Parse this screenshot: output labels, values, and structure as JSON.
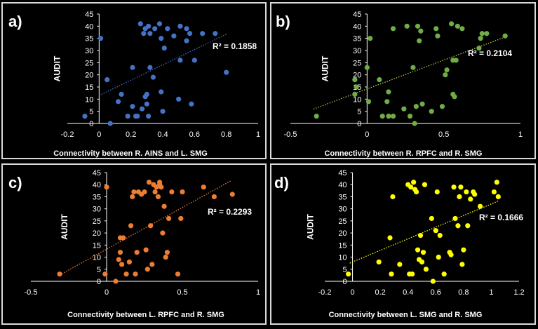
{
  "panel_border_color": "#d9d9d9",
  "background_color": "#000000",
  "axis_color": "#ffffff",
  "text_color": "#ffffff",
  "chart_data": [
    {
      "type": "scatter",
      "panel_label": "a)",
      "xlabel": "Connectivity between R. AINS and L. SMG",
      "ylabel": "AUDIT",
      "xlim": [
        -0.2,
        1
      ],
      "ylim": [
        0,
        45
      ],
      "xticks": [
        -0.2,
        0,
        0.2,
        0.4,
        0.6,
        0.8,
        1
      ],
      "yticks": [
        0,
        5,
        10,
        15,
        20,
        25,
        30,
        35,
        40,
        45
      ],
      "grid": false,
      "marker_color": "#4472c4",
      "trendline": {
        "style": "dotted",
        "color": "#4472c4",
        "intercept": 11.5,
        "slope": 31.5,
        "x_range": [
          0,
          0.8
        ]
      },
      "r2_label": "R² = 0.1858",
      "points": [
        {
          "x": -0.09,
          "y": 3
        },
        {
          "x": 0.01,
          "y": 35
        },
        {
          "x": 0.05,
          "y": 18
        },
        {
          "x": 0.07,
          "y": 0
        },
        {
          "x": 0.12,
          "y": 9
        },
        {
          "x": 0.14,
          "y": 12
        },
        {
          "x": 0.18,
          "y": 3
        },
        {
          "x": 0.21,
          "y": 23
        },
        {
          "x": 0.21,
          "y": 7
        },
        {
          "x": 0.23,
          "y": 3
        },
        {
          "x": 0.24,
          "y": 3
        },
        {
          "x": 0.26,
          "y": 41
        },
        {
          "x": 0.27,
          "y": 6
        },
        {
          "x": 0.28,
          "y": 37
        },
        {
          "x": 0.29,
          "y": 11
        },
        {
          "x": 0.29,
          "y": 39
        },
        {
          "x": 0.3,
          "y": 12
        },
        {
          "x": 0.3,
          "y": 8
        },
        {
          "x": 0.31,
          "y": 40
        },
        {
          "x": 0.31,
          "y": 3
        },
        {
          "x": 0.32,
          "y": 23
        },
        {
          "x": 0.32,
          "y": 37
        },
        {
          "x": 0.34,
          "y": 19
        },
        {
          "x": 0.35,
          "y": 39
        },
        {
          "x": 0.38,
          "y": 41
        },
        {
          "x": 0.39,
          "y": 35
        },
        {
          "x": 0.39,
          "y": 13
        },
        {
          "x": 0.4,
          "y": 5
        },
        {
          "x": 0.41,
          "y": 31
        },
        {
          "x": 0.43,
          "y": 39
        },
        {
          "x": 0.47,
          "y": 36
        },
        {
          "x": 0.5,
          "y": 10
        },
        {
          "x": 0.51,
          "y": 26
        },
        {
          "x": 0.51,
          "y": 40
        },
        {
          "x": 0.55,
          "y": 39
        },
        {
          "x": 0.55,
          "y": 34
        },
        {
          "x": 0.57,
          "y": 37
        },
        {
          "x": 0.58,
          "y": 8
        },
        {
          "x": 0.6,
          "y": 26
        },
        {
          "x": 0.65,
          "y": 37
        },
        {
          "x": 0.73,
          "y": 37
        },
        {
          "x": 0.8,
          "y": 21
        }
      ]
    },
    {
      "type": "scatter",
      "panel_label": "b)",
      "xlabel": "Connectivity between R. RPFC and R. SMG",
      "ylabel": "AUDIT",
      "xlim": [
        -0.5,
        1
      ],
      "ylim": [
        0,
        45
      ],
      "xticks": [
        -0.5,
        0,
        0.5,
        1
      ],
      "yticks": [
        0,
        5,
        10,
        15,
        20,
        25,
        30,
        35,
        40,
        45
      ],
      "grid": false,
      "marker_color": "#70ad47",
      "trendline": {
        "style": "dotted",
        "color": "#b4c94a",
        "intercept": 14.2,
        "slope": 23.7,
        "x_range": [
          -0.35,
          0.9
        ]
      },
      "r2_label": "R² = 0.2104",
      "points": [
        {
          "x": -0.33,
          "y": 3
        },
        {
          "x": -0.08,
          "y": 18
        },
        {
          "x": -0.08,
          "y": 12
        },
        {
          "x": -0.07,
          "y": 15
        },
        {
          "x": 0.0,
          "y": 23
        },
        {
          "x": 0.01,
          "y": 9
        },
        {
          "x": 0.02,
          "y": 35
        },
        {
          "x": 0.08,
          "y": 18
        },
        {
          "x": 0.1,
          "y": 3
        },
        {
          "x": 0.13,
          "y": 9
        },
        {
          "x": 0.14,
          "y": 13
        },
        {
          "x": 0.14,
          "y": 3
        },
        {
          "x": 0.17,
          "y": 3
        },
        {
          "x": 0.17,
          "y": 39
        },
        {
          "x": 0.24,
          "y": 6
        },
        {
          "x": 0.26,
          "y": 40
        },
        {
          "x": 0.28,
          "y": 3
        },
        {
          "x": 0.3,
          "y": 23
        },
        {
          "x": 0.31,
          "y": 0
        },
        {
          "x": 0.32,
          "y": 7
        },
        {
          "x": 0.33,
          "y": 40
        },
        {
          "x": 0.34,
          "y": 34
        },
        {
          "x": 0.35,
          "y": 38
        },
        {
          "x": 0.36,
          "y": 8
        },
        {
          "x": 0.42,
          "y": 5
        },
        {
          "x": 0.45,
          "y": 39
        },
        {
          "x": 0.46,
          "y": 36
        },
        {
          "x": 0.49,
          "y": 7
        },
        {
          "x": 0.51,
          "y": 20
        },
        {
          "x": 0.52,
          "y": 22
        },
        {
          "x": 0.55,
          "y": 41
        },
        {
          "x": 0.56,
          "y": 26
        },
        {
          "x": 0.56,
          "y": 12
        },
        {
          "x": 0.57,
          "y": 11
        },
        {
          "x": 0.58,
          "y": 26
        },
        {
          "x": 0.59,
          "y": 40
        },
        {
          "x": 0.62,
          "y": 39
        },
        {
          "x": 0.73,
          "y": 31
        },
        {
          "x": 0.74,
          "y": 35
        },
        {
          "x": 0.75,
          "y": 37
        },
        {
          "x": 0.78,
          "y": 37
        },
        {
          "x": 0.9,
          "y": 36
        }
      ]
    },
    {
      "type": "scatter",
      "panel_label": "c)",
      "xlabel": "Connectivity between L. RPFC and R. SMG",
      "ylabel": "AUDIT",
      "xlim": [
        -0.5,
        1
      ],
      "ylim": [
        0,
        45
      ],
      "xticks": [
        -0.5,
        0,
        0.5,
        1
      ],
      "yticks": [
        0,
        5,
        10,
        15,
        20,
        25,
        30,
        35,
        40,
        45
      ],
      "grid": false,
      "marker_color": "#ed7d31",
      "trendline": {
        "style": "dotted",
        "color": "#ed7d31",
        "intercept": 13.3,
        "slope": 34.5,
        "x_range": [
          -0.31,
          0.82
        ]
      },
      "r2_label": "R² = 0.2293",
      "points": [
        {
          "x": -0.31,
          "y": 3
        },
        {
          "x": -0.01,
          "y": 3
        },
        {
          "x": 0.0,
          "y": 39
        },
        {
          "x": 0.06,
          "y": 0
        },
        {
          "x": 0.08,
          "y": 9
        },
        {
          "x": 0.09,
          "y": 18
        },
        {
          "x": 0.09,
          "y": 12
        },
        {
          "x": 0.1,
          "y": 7
        },
        {
          "x": 0.11,
          "y": 18
        },
        {
          "x": 0.13,
          "y": 3
        },
        {
          "x": 0.15,
          "y": 8
        },
        {
          "x": 0.16,
          "y": 23
        },
        {
          "x": 0.17,
          "y": 35
        },
        {
          "x": 0.18,
          "y": 37
        },
        {
          "x": 0.19,
          "y": 3
        },
        {
          "x": 0.2,
          "y": 12
        },
        {
          "x": 0.21,
          "y": 37
        },
        {
          "x": 0.23,
          "y": 36
        },
        {
          "x": 0.25,
          "y": 37
        },
        {
          "x": 0.26,
          "y": 13
        },
        {
          "x": 0.27,
          "y": 5
        },
        {
          "x": 0.28,
          "y": 41
        },
        {
          "x": 0.29,
          "y": 23
        },
        {
          "x": 0.3,
          "y": 7
        },
        {
          "x": 0.31,
          "y": 40
        },
        {
          "x": 0.32,
          "y": 37
        },
        {
          "x": 0.33,
          "y": 39
        },
        {
          "x": 0.34,
          "y": 35
        },
        {
          "x": 0.35,
          "y": 40
        },
        {
          "x": 0.35,
          "y": 41
        },
        {
          "x": 0.36,
          "y": 39
        },
        {
          "x": 0.37,
          "y": 20
        },
        {
          "x": 0.38,
          "y": 31
        },
        {
          "x": 0.39,
          "y": 10
        },
        {
          "x": 0.4,
          "y": 12
        },
        {
          "x": 0.41,
          "y": 26
        },
        {
          "x": 0.43,
          "y": 37
        },
        {
          "x": 0.47,
          "y": 3
        },
        {
          "x": 0.49,
          "y": 26
        },
        {
          "x": 0.5,
          "y": 37
        },
        {
          "x": 0.64,
          "y": 39
        },
        {
          "x": 0.71,
          "y": 35
        },
        {
          "x": 0.83,
          "y": 36
        }
      ]
    },
    {
      "type": "scatter",
      "panel_label": "d)",
      "xlabel": "Connectivity between L. SMG and R. SMG",
      "ylabel": "AUDIT",
      "xlim": [
        -0.2,
        1.2
      ],
      "ylim": [
        0,
        45
      ],
      "xticks": [
        -0.2,
        0,
        0.2,
        0.4,
        0.6,
        0.8,
        1,
        1.2
      ],
      "yticks": [
        0,
        5,
        10,
        15,
        20,
        25,
        30,
        35,
        40,
        45
      ],
      "grid": false,
      "marker_color": "#ffff00",
      "trendline": {
        "style": "dotted",
        "color": "#ffff00",
        "intercept": 8.0,
        "slope": 24.0,
        "x_range": [
          -0.02,
          1.05
        ]
      },
      "r2_label": "R² = 0.1666",
      "points": [
        {
          "x": -0.03,
          "y": 3
        },
        {
          "x": 0.19,
          "y": 8
        },
        {
          "x": 0.27,
          "y": 18
        },
        {
          "x": 0.28,
          "y": 3
        },
        {
          "x": 0.29,
          "y": 35
        },
        {
          "x": 0.34,
          "y": 7
        },
        {
          "x": 0.4,
          "y": 40
        },
        {
          "x": 0.41,
          "y": 3
        },
        {
          "x": 0.42,
          "y": 39
        },
        {
          "x": 0.43,
          "y": 3
        },
        {
          "x": 0.44,
          "y": 41
        },
        {
          "x": 0.45,
          "y": 38
        },
        {
          "x": 0.46,
          "y": 37
        },
        {
          "x": 0.47,
          "y": 13
        },
        {
          "x": 0.48,
          "y": 9
        },
        {
          "x": 0.49,
          "y": 19
        },
        {
          "x": 0.5,
          "y": 8
        },
        {
          "x": 0.51,
          "y": 12
        },
        {
          "x": 0.52,
          "y": 40
        },
        {
          "x": 0.53,
          "y": 5
        },
        {
          "x": 0.57,
          "y": 26
        },
        {
          "x": 0.58,
          "y": 0
        },
        {
          "x": 0.6,
          "y": 21
        },
        {
          "x": 0.61,
          "y": 37
        },
        {
          "x": 0.62,
          "y": 10
        },
        {
          "x": 0.63,
          "y": 19
        },
        {
          "x": 0.66,
          "y": 3
        },
        {
          "x": 0.7,
          "y": 12
        },
        {
          "x": 0.71,
          "y": 11
        },
        {
          "x": 0.73,
          "y": 39
        },
        {
          "x": 0.74,
          "y": 26
        },
        {
          "x": 0.76,
          "y": 23
        },
        {
          "x": 0.77,
          "y": 35
        },
        {
          "x": 0.78,
          "y": 39
        },
        {
          "x": 0.79,
          "y": 7
        },
        {
          "x": 0.8,
          "y": 13
        },
        {
          "x": 0.82,
          "y": 37
        },
        {
          "x": 0.83,
          "y": 23
        },
        {
          "x": 0.85,
          "y": 34
        },
        {
          "x": 0.87,
          "y": 37
        },
        {
          "x": 0.88,
          "y": 36
        },
        {
          "x": 0.92,
          "y": 31
        },
        {
          "x": 1.02,
          "y": 37
        },
        {
          "x": 1.04,
          "y": 41
        },
        {
          "x": 1.05,
          "y": 35
        }
      ]
    }
  ]
}
